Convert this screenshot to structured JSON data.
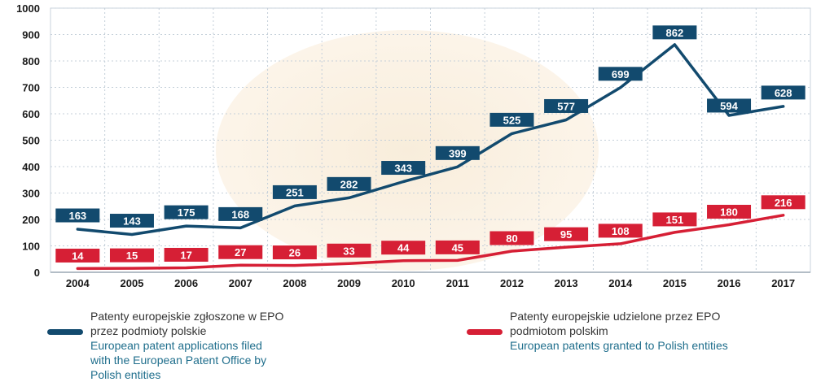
{
  "chart_data": {
    "type": "line",
    "categories": [
      "2004",
      "2005",
      "2006",
      "2007",
      "2008",
      "2009",
      "2010",
      "2011",
      "2012",
      "2013",
      "2014",
      "2015",
      "2016",
      "2017"
    ],
    "ylim": [
      0,
      1000
    ],
    "yticks": [
      0,
      100,
      200,
      300,
      400,
      500,
      600,
      700,
      800,
      900,
      1000
    ],
    "grid": true,
    "series": [
      {
        "name": "Patenty europejskie zgłoszone w EPO przez podmioty polskie / European patent applications filed with the European Patent Office by Polish entities",
        "color": "#124a6e",
        "values": [
          163,
          143,
          175,
          168,
          251,
          282,
          343,
          399,
          525,
          577,
          699,
          862,
          594,
          628
        ]
      },
      {
        "name": "Patenty europejskie udzielone przez EPO podmiotom polskim / European patents granted to Polish entities",
        "color": "#d61f35",
        "values": [
          14,
          15,
          17,
          27,
          26,
          33,
          44,
          45,
          80,
          95,
          108,
          151,
          180,
          216
        ]
      }
    ],
    "legend_position": "bottom"
  },
  "legend": {
    "applications": {
      "pl_line1": "Patenty europejskie zgłoszone w  EPO",
      "pl_line2": "przez podmioty polskie",
      "en_line1": "European patent applications filed",
      "en_line2": "with the  European Patent Office by",
      "en_line3": "Polish entities"
    },
    "grants": {
      "pl_line1": "Patenty europejskie udzielone przez EPO",
      "pl_line2": "podmiotom polskim",
      "en_line1": "European patents granted to  Polish entities"
    }
  }
}
